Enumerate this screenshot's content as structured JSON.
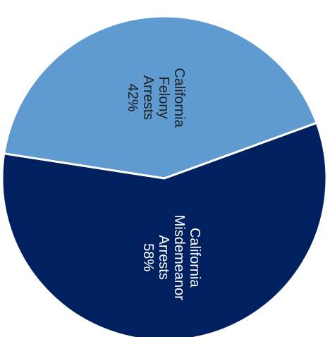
{
  "chart_data": {
    "type": "pie",
    "title": "",
    "legend": "none",
    "slices": [
      {
        "label_lines": [
          "California",
          "Felony",
          "Arrests"
        ],
        "value_label": "42%",
        "value": 42,
        "color": "#5f9bd1",
        "text_color": "#1f1f1f"
      },
      {
        "label_lines": [
          "California",
          "Misdemeanor",
          "Arrests"
        ],
        "value_label": "58%",
        "value": 58,
        "color": "#002060",
        "text_color": "#ffffff"
      }
    ]
  }
}
